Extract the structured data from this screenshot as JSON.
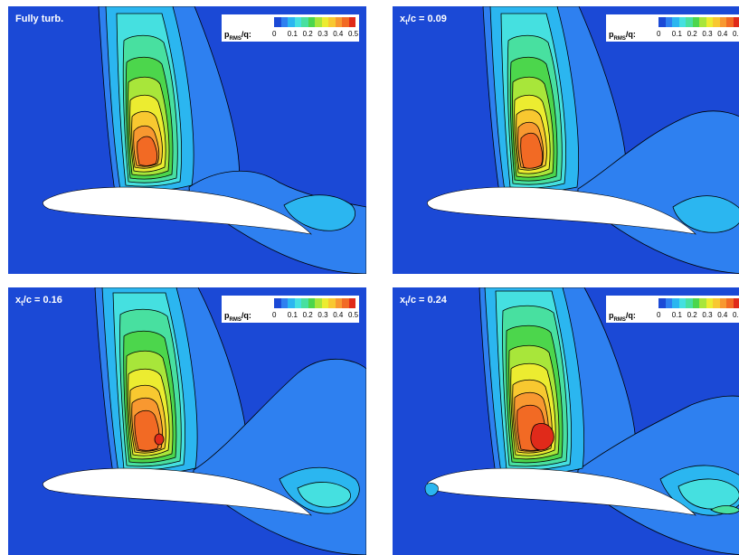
{
  "panels": [
    {
      "title_main": "Fully turb.",
      "title_sub": "",
      "title_tail": ""
    },
    {
      "title_main": "x",
      "title_sub": "t",
      "title_tail": "/c = 0.09"
    },
    {
      "title_main": "x",
      "title_sub": "t",
      "title_tail": "/c = 0.16"
    },
    {
      "title_main": "x",
      "title_sub": "t",
      "title_tail": "/c = 0.24"
    }
  ],
  "legend": {
    "label_main": "p",
    "label_sub": "RMS",
    "label_tail": "/q:",
    "ticks": [
      "0",
      "0.1",
      "0.2",
      "0.3",
      "0.4",
      "0.5"
    ],
    "colors": [
      "#1b49d6",
      "#2e80f0",
      "#2bb6f0",
      "#45e0e0",
      "#48e0a0",
      "#4cd64c",
      "#a8e63a",
      "#ecec30",
      "#f8c830",
      "#f89830",
      "#f26a24",
      "#e02a1a"
    ]
  },
  "colors": {
    "background": "#1b49d6",
    "airfoil": "#ffffff",
    "contour_line": "#000000"
  }
}
